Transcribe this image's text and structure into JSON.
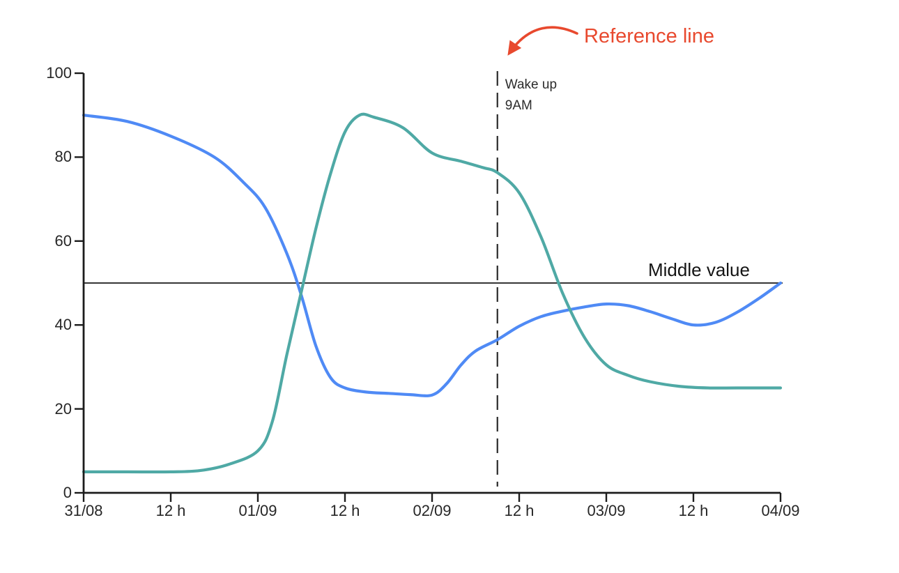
{
  "chart_data": {
    "type": "line",
    "title": "",
    "grid": false,
    "legend": false,
    "x_axis": {
      "tick_labels": [
        "31/08",
        "12 h",
        "01/09",
        "12 h",
        "02/09",
        "12 h",
        "03/09",
        "12 h",
        "04/09"
      ],
      "tick_hours": [
        0,
        12,
        24,
        36,
        48,
        60,
        72,
        84,
        96
      ],
      "range_hours": [
        0,
        96
      ]
    },
    "y_axis": {
      "ticks": [
        0,
        20,
        40,
        60,
        80,
        100
      ],
      "range": [
        0,
        100
      ]
    },
    "series": [
      {
        "id": "series-1",
        "color": "#4F8AF5",
        "points": [
          [
            0,
            90
          ],
          [
            6,
            88.5
          ],
          [
            12,
            85
          ],
          [
            18,
            80
          ],
          [
            22,
            74
          ],
          [
            25,
            68
          ],
          [
            28,
            57
          ],
          [
            30,
            47
          ],
          [
            32,
            35
          ],
          [
            34,
            27.5
          ],
          [
            36,
            25
          ],
          [
            39,
            24
          ],
          [
            42,
            23.7
          ],
          [
            45,
            23.4
          ],
          [
            48,
            23.3
          ],
          [
            50,
            26
          ],
          [
            52,
            30.5
          ],
          [
            54,
            33.8
          ],
          [
            57,
            36.5
          ],
          [
            60,
            39.7
          ],
          [
            63,
            42
          ],
          [
            66,
            43.3
          ],
          [
            69,
            44.3
          ],
          [
            72,
            45
          ],
          [
            75,
            44.6
          ],
          [
            78,
            43.2
          ],
          [
            81,
            41.5
          ],
          [
            84,
            40
          ],
          [
            87,
            40.6
          ],
          [
            90,
            43
          ],
          [
            93,
            46.3
          ],
          [
            96,
            50
          ]
        ]
      },
      {
        "id": "series-2",
        "color": "#4FA9A5",
        "points": [
          [
            0,
            5
          ],
          [
            6,
            5
          ],
          [
            12,
            5
          ],
          [
            16,
            5.3
          ],
          [
            20,
            6.8
          ],
          [
            24,
            10
          ],
          [
            26,
            17
          ],
          [
            28,
            33
          ],
          [
            30,
            48
          ],
          [
            32,
            63
          ],
          [
            34,
            76
          ],
          [
            36,
            86
          ],
          [
            38,
            90
          ],
          [
            40,
            89.5
          ],
          [
            44,
            87
          ],
          [
            48,
            81
          ],
          [
            52,
            79
          ],
          [
            55,
            77.5
          ],
          [
            57,
            76.3
          ],
          [
            60,
            71.5
          ],
          [
            63,
            61
          ],
          [
            66,
            47.5
          ],
          [
            69,
            37
          ],
          [
            72,
            30.5
          ],
          [
            75,
            28
          ],
          [
            78,
            26.5
          ],
          [
            82,
            25.4
          ],
          [
            86,
            25
          ],
          [
            90,
            25
          ],
          [
            96,
            25
          ]
        ]
      }
    ],
    "reference_lines": {
      "horizontal": {
        "value": 50,
        "label": "Middle value",
        "color": "#1a1a1a"
      },
      "vertical": {
        "hour": 57,
        "labels": [
          "Wake up",
          "9AM"
        ],
        "style": "dashed",
        "color": "#2a2a2a"
      }
    },
    "reference_annotation": {
      "text": "Reference line",
      "color": "#E8492E"
    },
    "colors": {
      "axis": "#1c1c1c"
    }
  }
}
